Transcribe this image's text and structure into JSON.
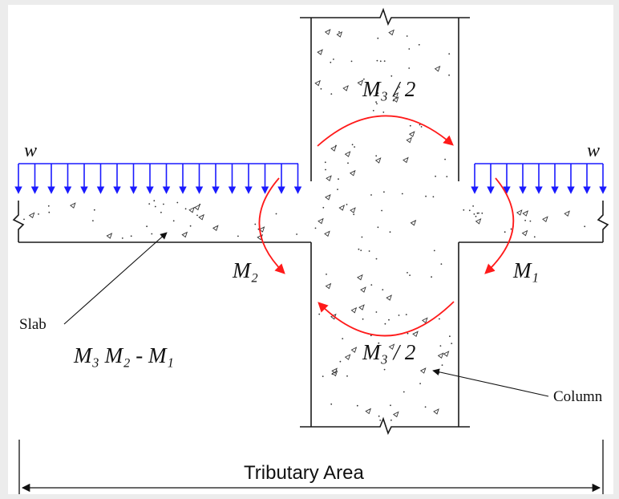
{
  "labels": {
    "load_left": "w",
    "load_right": "w",
    "m3_half_top": "M₃ / 2",
    "m3_half_bottom": "M₃ / 2",
    "m2": "M₂",
    "m1": "M₁",
    "equation": "M₃   M₂ - M₁",
    "slab": "Slab",
    "column": "Column",
    "tributary": "Tributary Area"
  },
  "colors": {
    "load_arrows": "#1a1aff",
    "moment_arrows": "#ff1a1a",
    "lines": "#1a1a1a",
    "hatch": "#333333"
  },
  "icons": {
    "load_arrow": "arrow-down-icon",
    "moment_arrow": "curved-arrow-icon",
    "break": "break-line-icon"
  }
}
